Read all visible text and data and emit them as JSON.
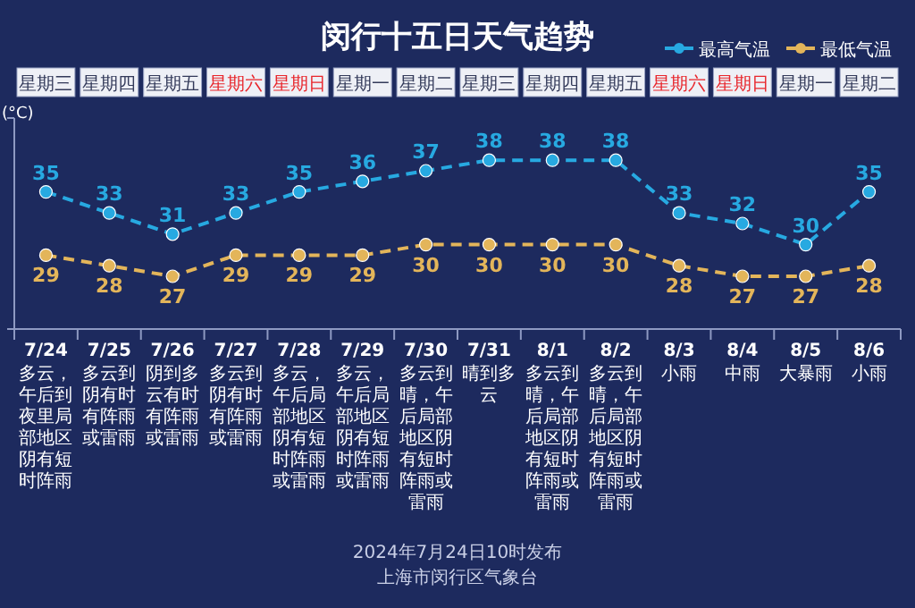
{
  "chart_data": {
    "type": "line",
    "title": "闵行十五日天气趋势",
    "ylabel": "(°C)",
    "categories": [
      "7/24",
      "7/25",
      "7/26",
      "7/27",
      "7/28",
      "7/29",
      "7/30",
      "7/31",
      "8/1",
      "8/2",
      "8/3",
      "8/4",
      "8/5",
      "8/6"
    ],
    "series": [
      {
        "name": "最高气温",
        "color": "#27a9e1",
        "values": [
          35,
          33,
          31,
          33,
          35,
          36,
          37,
          38,
          38,
          38,
          33,
          32,
          30,
          35
        ]
      },
      {
        "name": "最低气温",
        "color": "#e3b55a",
        "values": [
          29,
          28,
          27,
          29,
          29,
          29,
          30,
          30,
          30,
          30,
          28,
          27,
          27,
          28
        ]
      }
    ],
    "ylim": [
      22,
      42
    ],
    "data_labels": true,
    "marker": "circle",
    "line_style": "dashed",
    "legend": "top right",
    "grid": false,
    "annotations": [
      "星期三",
      "星期四",
      "星期五",
      "星期六",
      "星期日",
      "星期一",
      "星期二",
      "星期三",
      "星期四",
      "星期五",
      "星期六",
      "星期日",
      "星期一",
      "星期二",
      "多云，午后到夜里局部地区阴有短时阵雨",
      "多云到阴有时有阵雨或雷雨",
      "阴到多云有时有阵雨或雷雨",
      "多云到阴有时有阵雨或雷雨",
      "多云，午后局部地区阴有短时阵雨或雷雨",
      "多云，午后局部地区阴有短时阵雨或雷雨",
      "多云到晴，午后局部地区阴有短时阵雨或雷雨",
      "晴到多云",
      "多云到晴，午后局部地区阴有短时阵雨或雷雨",
      "多云到晴，午后局部地区阴有短时阵雨或雷雨",
      "小雨",
      "中雨",
      "大暴雨",
      "小雨",
      "2024年7月24日10时发布",
      "上海市闵行区气象台"
    ]
  }
}
